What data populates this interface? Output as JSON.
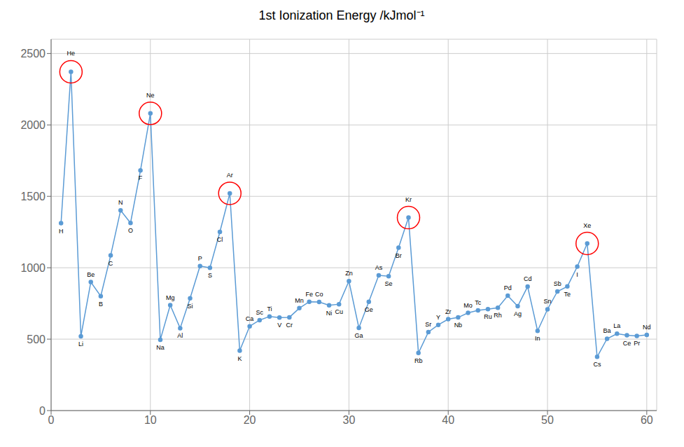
{
  "chart_data": {
    "type": "line",
    "title": "1st Ionization Energy /kJmol⁻¹",
    "x": [
      1,
      2,
      3,
      4,
      5,
      6,
      7,
      8,
      9,
      10,
      11,
      12,
      13,
      14,
      15,
      16,
      17,
      18,
      19,
      20,
      21,
      22,
      23,
      24,
      25,
      26,
      27,
      28,
      29,
      30,
      31,
      32,
      33,
      34,
      35,
      36,
      37,
      38,
      39,
      40,
      41,
      42,
      43,
      44,
      45,
      46,
      47,
      48,
      49,
      50,
      51,
      52,
      53,
      54,
      55,
      56,
      57,
      58,
      59,
      60
    ],
    "xlim": [
      0,
      61
    ],
    "xticks": [
      0,
      10,
      20,
      30,
      40,
      50,
      60
    ],
    "ylim": [
      0,
      2600
    ],
    "yticks": [
      0,
      500,
      1000,
      1500,
      2000,
      2500
    ],
    "grid": true,
    "series": [
      {
        "type": "line",
        "color": "#5b9bd5",
        "marker": "circle",
        "values": [
          1312,
          2372,
          520,
          900,
          801,
          1086,
          1402,
          1314,
          1681,
          2081,
          496,
          738,
          577,
          786,
          1012,
          1000,
          1251,
          1521,
          419,
          590,
          633,
          659,
          651,
          653,
          717,
          762,
          760,
          737,
          745,
          906,
          579,
          762,
          947,
          941,
          1140,
          1351,
          403,
          550,
          600,
          640,
          652,
          684,
          702,
          710,
          720,
          804,
          731,
          868,
          558,
          709,
          834,
          869,
          1008,
          1170,
          376,
          503,
          538,
          527,
          523,
          530
        ],
        "labels": [
          "H",
          "He",
          "Li",
          "Be",
          "B",
          "C",
          "N",
          "O",
          "F",
          "Ne",
          "Na",
          "Mg",
          "Al",
          "Si",
          "P",
          "S",
          "Cl",
          "Ar",
          "K",
          "Ca",
          "Sc",
          "Ti",
          "V",
          "Cr",
          "Mn",
          "Fe",
          "Co",
          "Ni",
          "Cu",
          "Zn",
          "Ga",
          "Ge",
          "As",
          "Se",
          "Br",
          "Kr",
          "Rb",
          "Sr",
          "Y",
          "Zr",
          "Nb",
          "Mo",
          "Tc",
          "Ru",
          "Rh",
          "Pd",
          "Ag",
          "Cd",
          "In",
          "Sn",
          "Sb",
          "Te",
          "I",
          "Xe",
          "Cs",
          "Ba",
          "La",
          "Ce",
          "Pr",
          "Nd"
        ]
      },
      {
        "type": "scatter",
        "marker": "ring",
        "color": "red",
        "values": [
          null,
          2372,
          null,
          null,
          null,
          null,
          null,
          null,
          null,
          2081,
          null,
          null,
          null,
          null,
          null,
          null,
          null,
          1521,
          null,
          null,
          null,
          null,
          null,
          null,
          null,
          null,
          null,
          null,
          null,
          null,
          null,
          null,
          null,
          null,
          null,
          1351,
          null,
          null,
          null,
          null,
          null,
          null,
          null,
          null,
          null,
          null,
          null,
          null,
          null,
          null,
          null,
          null,
          null,
          1170,
          null,
          null,
          null,
          null,
          null,
          null
        ]
      }
    ]
  }
}
